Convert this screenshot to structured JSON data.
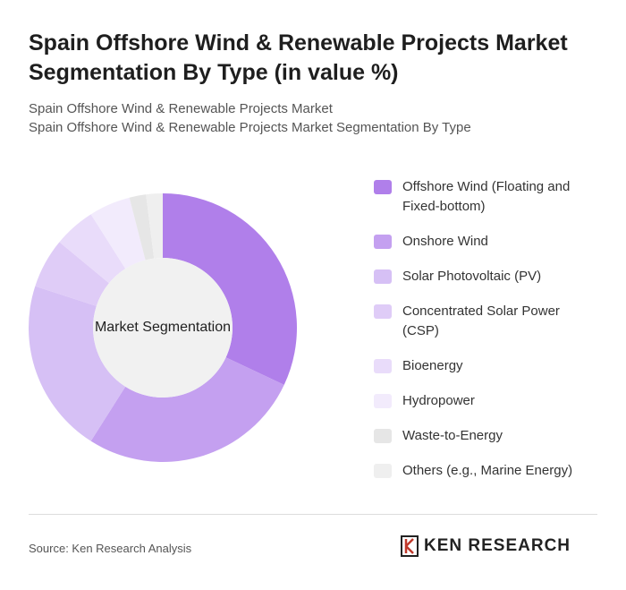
{
  "chart_data": {
    "type": "donut",
    "title": "Spain Offshore Wind & Renewable Projects Market Segmentation By Type (in value %)",
    "subtitle": [
      "Spain Offshore Wind & Renewable Projects Market",
      "Spain Offshore Wind & Renewable Projects Market Segmentation By Type"
    ],
    "center_label": "Market Segmentation",
    "categories": [
      "Offshore Wind (Floating and Fixed-bottom)",
      "Onshore Wind",
      "Solar Photovoltaic (PV)",
      "Concentrated Solar Power (CSP)",
      "Bioenergy",
      "Hydropower",
      "Waste-to-Energy",
      "Others (e.g., Marine Energy)"
    ],
    "values": [
      32,
      27,
      21,
      6,
      5,
      5,
      2,
      2
    ],
    "colors": [
      "#b07fea",
      "#c4a0f0",
      "#d6c0f5",
      "#dfccf7",
      "#e9dcfa",
      "#f2ebfc",
      "#e6e6e6",
      "#efefef"
    ],
    "source": "Source: Ken Research Analysis",
    "logo": "KEN RESEARCH"
  }
}
